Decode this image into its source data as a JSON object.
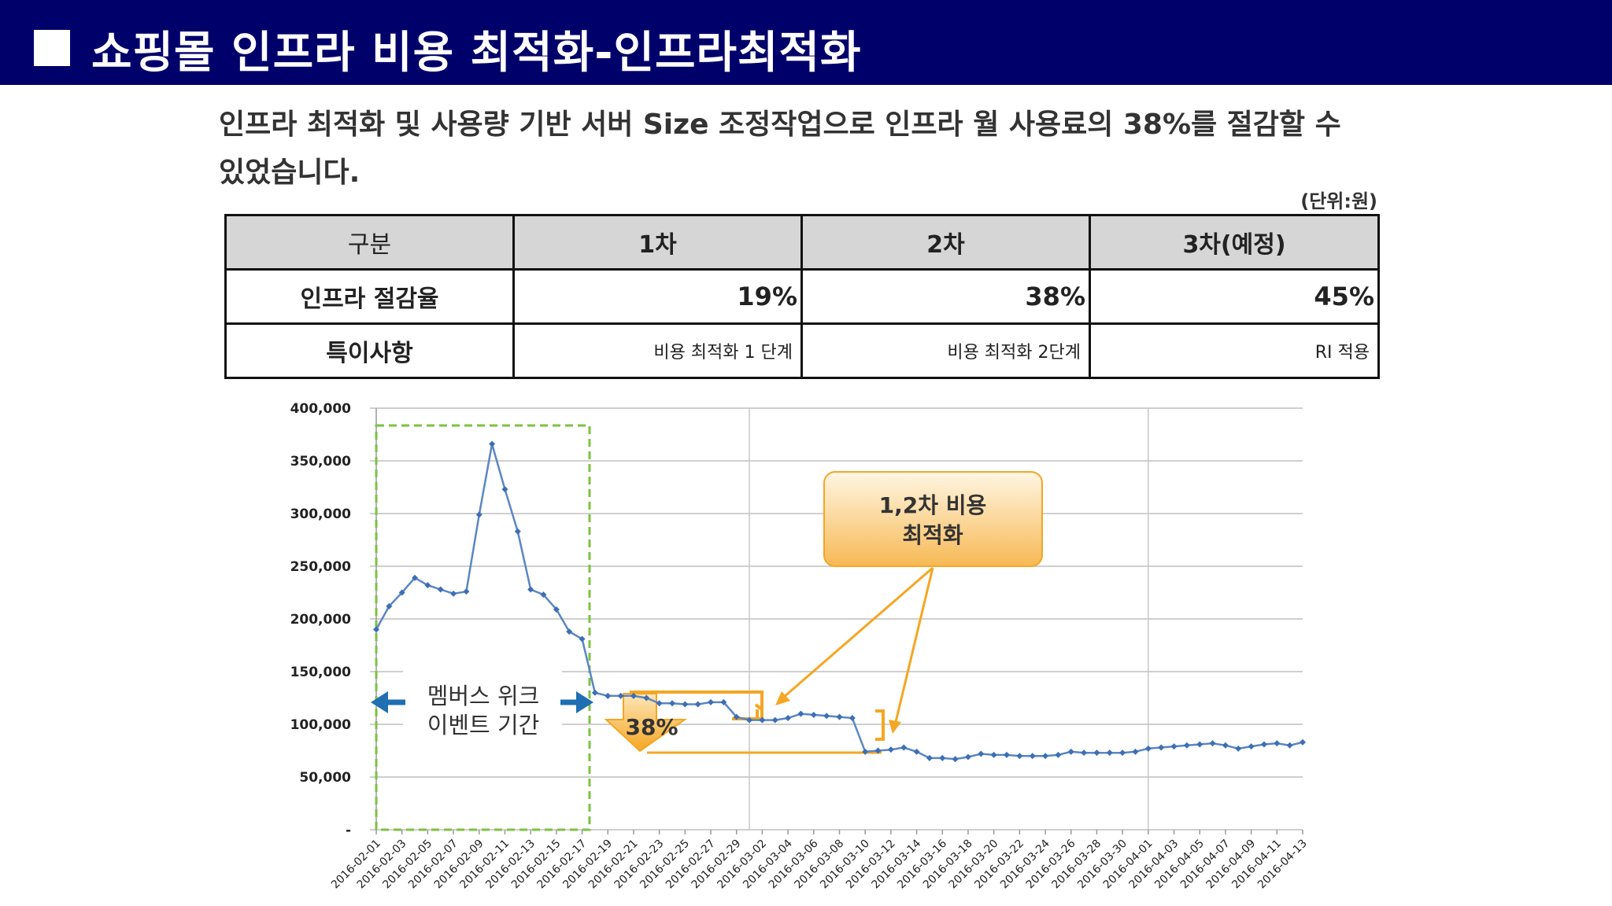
{
  "header": {
    "title": "쇼핑몰 인프라 비용 최적화-인프라최적화"
  },
  "subtitle": {
    "text": "인프라 최적화 및 사용량 기반 서버 Size 조정작업으로 인프라 월 사용료의 38%를 절감할 수 있었습니다."
  },
  "unit_label": "(단위:원)",
  "table": {
    "headers": [
      "구분",
      "1차",
      "2차",
      "3차(예정)"
    ],
    "rows": [
      {
        "label": "인프라 절감율",
        "values": [
          "19%",
          "38%",
          "45%"
        ]
      },
      {
        "label": "특이사항",
        "values": [
          "비용 최적화 1 단계",
          "비용 최적화 2단계",
          "RI 적용"
        ]
      }
    ]
  },
  "chart_data": {
    "type": "line",
    "ylim": [
      0,
      400000
    ],
    "y_ticks": [
      0,
      50000,
      100000,
      150000,
      200000,
      250000,
      300000,
      350000,
      400000
    ],
    "y_tick_labels": [
      "-",
      "50,000",
      "100,000",
      "150,000",
      "200,000",
      "250,000",
      "300,000",
      "350,000",
      "400,000"
    ],
    "x_tick_labels": [
      "2016-02-01",
      "2016-02-03",
      "2016-02-05",
      "2016-02-07",
      "2016-02-09",
      "2016-02-11",
      "2016-02-13",
      "2016-02-15",
      "2016-02-17",
      "2016-02-19",
      "2016-02-21",
      "2016-02-23",
      "2016-02-25",
      "2016-02-27",
      "2016-02-29",
      "2016-03-02",
      "2016-03-04",
      "2016-03-06",
      "2016-03-08",
      "2016-03-10",
      "2016-03-12",
      "2016-03-14",
      "2016-03-16",
      "2016-03-18",
      "2016-03-20",
      "2016-03-22",
      "2016-03-24",
      "2016-03-26",
      "2016-03-28",
      "2016-03-30",
      "2016-04-01",
      "2016-04-03",
      "2016-04-05",
      "2016-04-07",
      "2016-04-09",
      "2016-04-11",
      "2016-04-13"
    ],
    "series": [
      {
        "color": "#5b86c4",
        "values": [
          190000,
          212000,
          225000,
          239000,
          232000,
          228000,
          224000,
          226000,
          299000,
          366000,
          323000,
          283000,
          228000,
          223000,
          209000,
          188000,
          181000,
          130000,
          127000,
          127000,
          127000,
          125000,
          120000,
          120000,
          119000,
          119000,
          121000,
          121000,
          107000,
          104000,
          104000,
          104000,
          106000,
          110000,
          109000,
          108000,
          107000,
          106000,
          74000,
          75000,
          76000,
          78000,
          74000,
          68000,
          68000,
          67000,
          69000,
          72000,
          71000,
          71000,
          70000,
          70000,
          70000,
          71000,
          74000,
          73000,
          73000,
          73000,
          73000,
          74000,
          77000,
          78000,
          79000,
          80000,
          81000,
          82000,
          80000,
          77000,
          79000,
          81000,
          82000,
          80000,
          83000
        ]
      }
    ],
    "annotations": {
      "event_box_label": "멤버스 위크 이벤트 기간",
      "callout_label": "1,2차 비용 최적화",
      "reduction_label": "38%"
    },
    "colors": {
      "event_box": "#7cc242",
      "callout": "#f5a623",
      "arrow_blue": "#1f6fb2",
      "line": "#5b86c4"
    },
    "grid": true
  }
}
